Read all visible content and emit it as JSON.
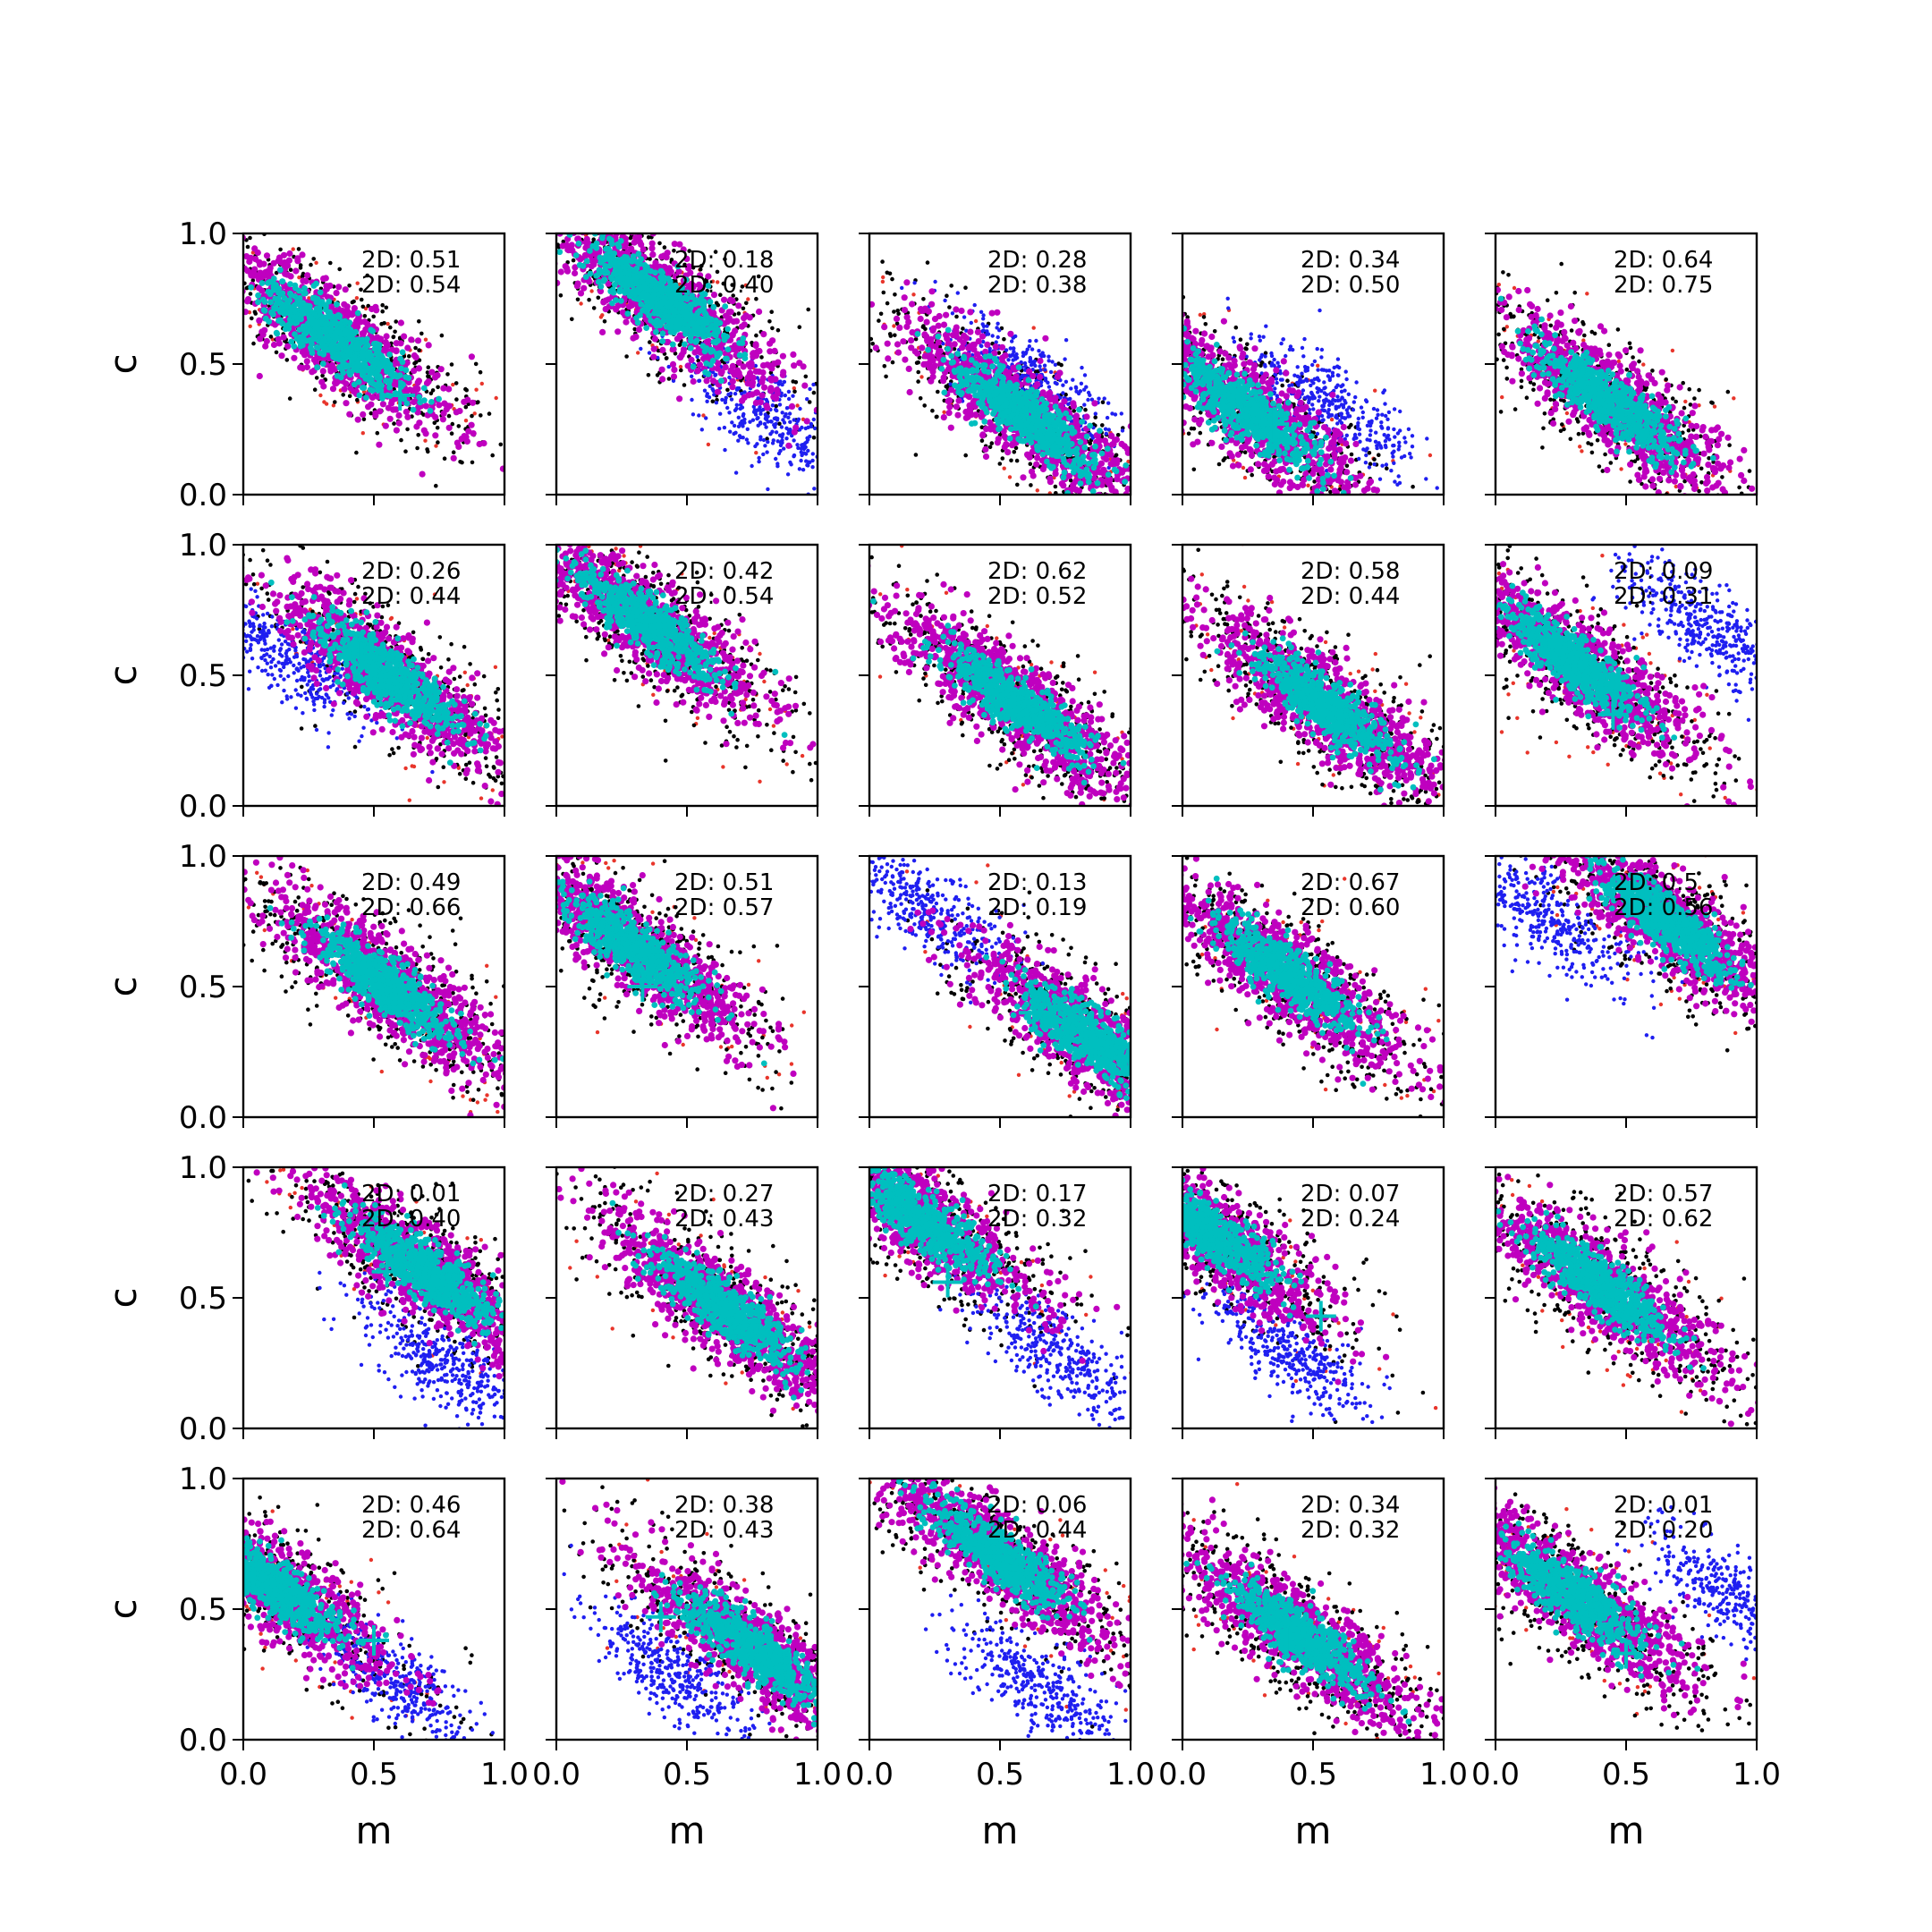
{
  "chart_data": {
    "type": "scatter",
    "rows": 5,
    "cols": 5,
    "xlabel": "m",
    "ylabel": "c",
    "xlim": [
      0.0,
      1.0
    ],
    "ylim": [
      0.0,
      1.0
    ],
    "xticks": [
      "0.0",
      "0.5",
      "1.0"
    ],
    "yticks": [
      "0.0",
      "0.5",
      "1.0"
    ],
    "colors": {
      "outer_red": "#e8352b",
      "black": "#000000",
      "blue": "#1f1ff0",
      "magenta": "#bf00bf",
      "cyan": "#00bfbf"
    },
    "panels": [
      {
        "annotations": [
          "2D: 0.51",
          "2D: 0.54"
        ],
        "center": [
          0.35,
          0.6
        ],
        "blue": null,
        "marker": [
          0.6,
          0.38
        ]
      },
      {
        "annotations": [
          "2D: 0.18",
          "2D: 0.40"
        ],
        "center": [
          0.4,
          0.75
        ],
        "blue": [
          0.8,
          0.3
        ],
        "marker": null
      },
      {
        "annotations": [
          "2D: 0.28",
          "2D: 0.38"
        ],
        "center": [
          0.6,
          0.3
        ],
        "blue": [
          0.6,
          0.45
        ],
        "marker": null
      },
      {
        "annotations": [
          "2D: 0.34",
          "2D: 0.50"
        ],
        "center": [
          0.25,
          0.32
        ],
        "blue": [
          0.55,
          0.35
        ],
        "marker": [
          0.35,
          0.27
        ]
      },
      {
        "annotations": [
          "2D: 0.64",
          "2D: 0.75"
        ],
        "center": [
          0.45,
          0.35
        ],
        "blue": null,
        "marker": null
      },
      {
        "annotations": [
          "2D: 0.26",
          "2D: 0.44"
        ],
        "center": [
          0.55,
          0.5
        ],
        "blue": [
          0.2,
          0.55
        ],
        "marker": [
          0.45,
          0.57
        ]
      },
      {
        "annotations": [
          "2D: 0.42",
          "2D: 0.54"
        ],
        "center": [
          0.35,
          0.7
        ],
        "blue": null,
        "marker": null
      },
      {
        "annotations": [
          "2D: 0.62",
          "2D: 0.52"
        ],
        "center": [
          0.55,
          0.4
        ],
        "blue": null,
        "marker": null
      },
      {
        "annotations": [
          "2D: 0.58",
          "2D: 0.44"
        ],
        "center": [
          0.55,
          0.38
        ],
        "blue": null,
        "marker": null
      },
      {
        "annotations": [
          "2D: 0.09",
          "2D: 0.31"
        ],
        "center": [
          0.3,
          0.55
        ],
        "blue": [
          0.8,
          0.7
        ],
        "marker": [
          0.45,
          0.35
        ]
      },
      {
        "annotations": [
          "2D: 0.49",
          "2D: 0.66"
        ],
        "center": [
          0.55,
          0.5
        ],
        "blue": null,
        "marker": null
      },
      {
        "annotations": [
          "2D: 0.51",
          "2D: 0.57"
        ],
        "center": [
          0.3,
          0.65
        ],
        "blue": null,
        "marker": [
          0.33,
          0.5
        ]
      },
      {
        "annotations": [
          "2D: 0.13",
          "2D: 0.19"
        ],
        "center": [
          0.85,
          0.3
        ],
        "blue": [
          0.2,
          0.8
        ],
        "marker": [
          0.63,
          0.4
        ]
      },
      {
        "annotations": [
          "2D: 0.67",
          "2D: 0.60"
        ],
        "center": [
          0.4,
          0.55
        ],
        "blue": null,
        "marker": null
      },
      {
        "annotations": [
          "2D: 0.5",
          "2D: 0.56"
        ],
        "center": [
          0.65,
          0.75
        ],
        "blue": [
          0.2,
          0.75
        ],
        "marker": null
      },
      {
        "annotations": [
          "2D: 0.01",
          "2D: 0.40"
        ],
        "center": [
          0.7,
          0.6
        ],
        "blue": [
          0.75,
          0.25
        ],
        "marker": [
          0.55,
          0.6
        ]
      },
      {
        "annotations": [
          "2D: 0.27",
          "2D: 0.43"
        ],
        "center": [
          0.65,
          0.45
        ],
        "blue": null,
        "marker": null
      },
      {
        "annotations": [
          "2D: 0.17",
          "2D: 0.32"
        ],
        "center": [
          0.2,
          0.8
        ],
        "blue": [
          0.7,
          0.3
        ],
        "marker": [
          0.3,
          0.56
        ]
      },
      {
        "annotations": [
          "2D: 0.07",
          "2D: 0.24"
        ],
        "center": [
          0.1,
          0.75
        ],
        "blue": [
          0.4,
          0.3
        ],
        "marker": [
          0.53,
          0.43
        ]
      },
      {
        "annotations": [
          "2D: 0.57",
          "2D: 0.62"
        ],
        "center": [
          0.4,
          0.55
        ],
        "blue": null,
        "marker": null
      },
      {
        "annotations": [
          "2D: 0.46",
          "2D: 0.64"
        ],
        "center": [
          0.1,
          0.6
        ],
        "blue": [
          0.55,
          0.25
        ],
        "marker": [
          0.5,
          0.38
        ]
      },
      {
        "annotations": [
          "2D: 0.38",
          "2D: 0.43"
        ],
        "center": [
          0.75,
          0.35
        ],
        "blue": [
          0.45,
          0.25
        ],
        "marker": [
          0.4,
          0.47
        ]
      },
      {
        "annotations": [
          "2D: 0.06",
          "2D: 0.44"
        ],
        "center": [
          0.5,
          0.7
        ],
        "blue": [
          0.65,
          0.2
        ],
        "marker": null
      },
      {
        "annotations": [
          "2D: 0.34",
          "2D: 0.32"
        ],
        "center": [
          0.45,
          0.4
        ],
        "blue": null,
        "marker": [
          0.4,
          0.37
        ]
      },
      {
        "annotations": [
          "2D: 0.01",
          "2D: 0.20"
        ],
        "center": [
          0.3,
          0.55
        ],
        "blue": [
          0.9,
          0.55
        ],
        "marker": [
          0.5,
          0.33
        ]
      }
    ]
  }
}
